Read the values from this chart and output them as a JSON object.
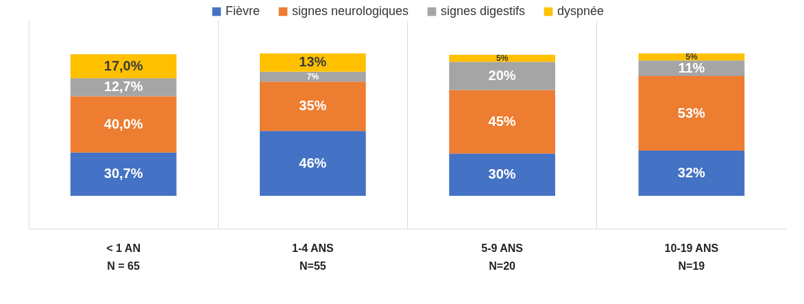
{
  "chart_data": {
    "type": "bar",
    "stacked": true,
    "categories": [
      "< 1 AN\nN = 65",
      "1-4 ANS\nN=55",
      "5-9 ANS\nN=20",
      "10-19 ANS\nN=19"
    ],
    "series": [
      {
        "name": "Fièvre",
        "color": "#4472c4",
        "values": [
          30.7,
          46,
          30,
          32
        ],
        "value_labels": [
          "30,7%",
          "46%",
          "30%",
          "32%"
        ]
      },
      {
        "name": "signes neurologiques",
        "color": "#ed7d31",
        "values": [
          40.0,
          35,
          45,
          53
        ],
        "value_labels": [
          "40,0%",
          "35%",
          "45%",
          "53%"
        ]
      },
      {
        "name": "signes digestifs",
        "color": "#a5a5a5",
        "values": [
          12.7,
          7,
          20,
          11
        ],
        "value_labels": [
          "12,7%",
          "7%",
          "20%",
          "11%"
        ]
      },
      {
        "name": "dyspnée",
        "color": "#ffc000",
        "values": [
          17.0,
          13,
          5,
          5
        ],
        "value_labels": [
          "17,0%",
          "13%",
          "5%",
          "5%"
        ]
      }
    ],
    "grid": "x",
    "legend": "top"
  }
}
